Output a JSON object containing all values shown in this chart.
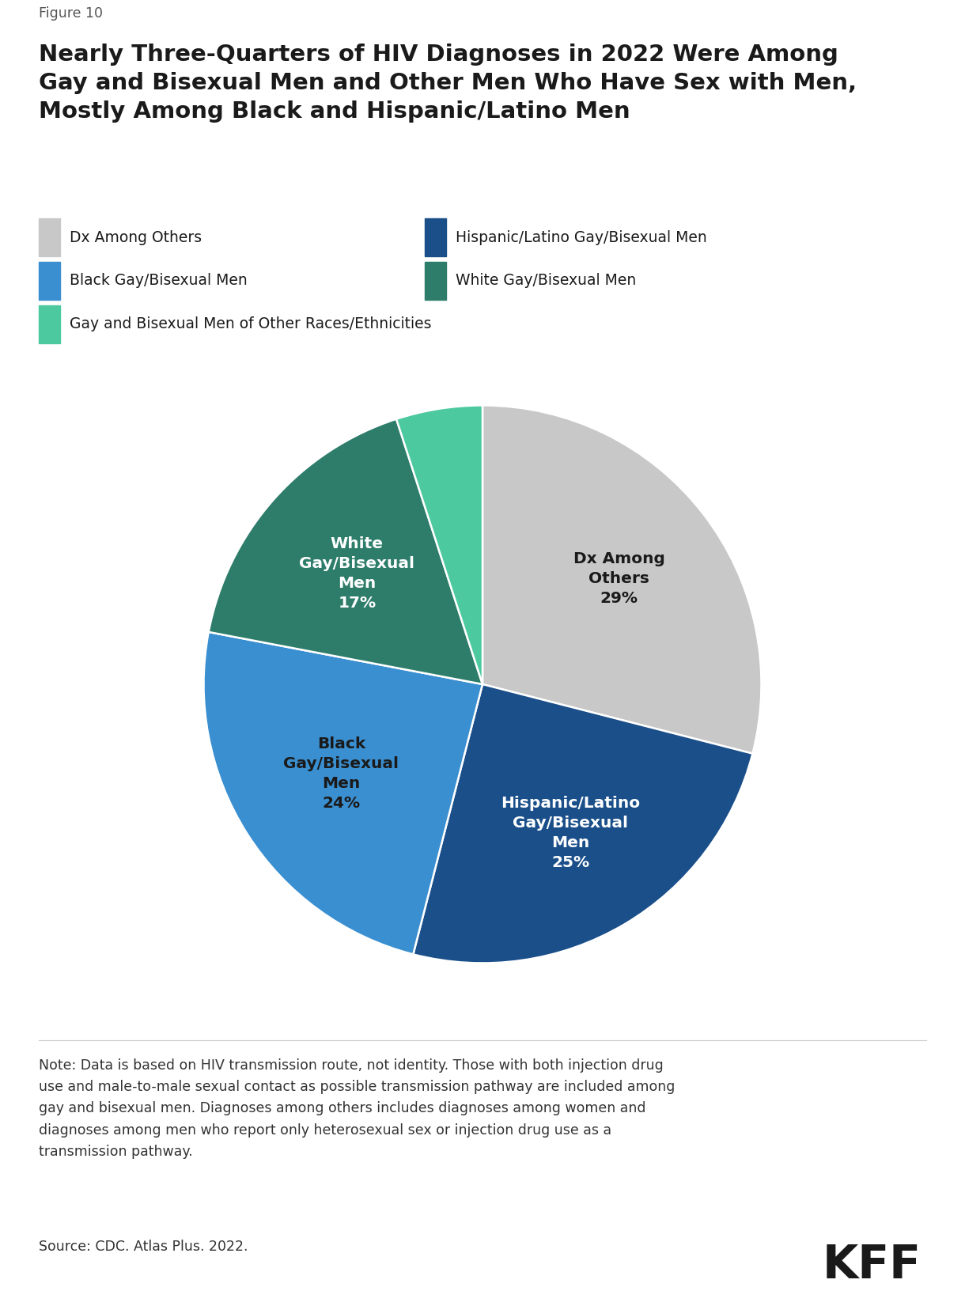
{
  "figure_label": "Figure 10",
  "title": "Nearly Three-Quarters of HIV Diagnoses in 2022 Were Among\nGay and Bisexual Men and Other Men Who Have Sex with Men,\nMostly Among Black and Hispanic/Latino Men",
  "slices": [
    {
      "label": "Dx Among\nOthers\n29%",
      "value": 29,
      "color": "#c8c8c8",
      "legend_label": "Dx Among Others",
      "label_color": "#1a1a1a"
    },
    {
      "label": "Hispanic/Latino\nGay/Bisexual\nMen\n25%",
      "value": 25,
      "color": "#1a4f8a",
      "legend_label": "Hispanic/Latino Gay/Bisexual Men",
      "label_color": "#ffffff"
    },
    {
      "label": "Black\nGay/Bisexual\nMen\n24%",
      "value": 24,
      "color": "#3a8fd1",
      "legend_label": "Black Gay/Bisexual Men",
      "label_color": "#1a1a1a"
    },
    {
      "label": "White\nGay/Bisexual\nMen\n17%",
      "value": 17,
      "color": "#2e7d6b",
      "legend_label": "White Gay/Bisexual Men",
      "label_color": "#ffffff"
    },
    {
      "label": "",
      "value": 5,
      "color": "#4dc9a0",
      "legend_label": "Gay and Bisexual Men of Other Races/Ethnicities",
      "label_color": "#1a1a1a"
    }
  ],
  "note_line1": "Note: Data is based on HIV transmission route, not identity. Those with both injection drug",
  "note_line2": "use and male-to-male sexual contact as possible transmission pathway are included among",
  "note_line3": "gay and bisexual men. Diagnoses among others includes diagnoses among women and",
  "note_line4": "diagnoses among men who report only heterosexual sex or injection drug use as a",
  "note_line5": "transmission pathway.",
  "source": "Source: CDC. Atlas Plus. 2022.",
  "kff_label": "KFF",
  "background_color": "#ffffff",
  "text_color": "#1a1a1a"
}
